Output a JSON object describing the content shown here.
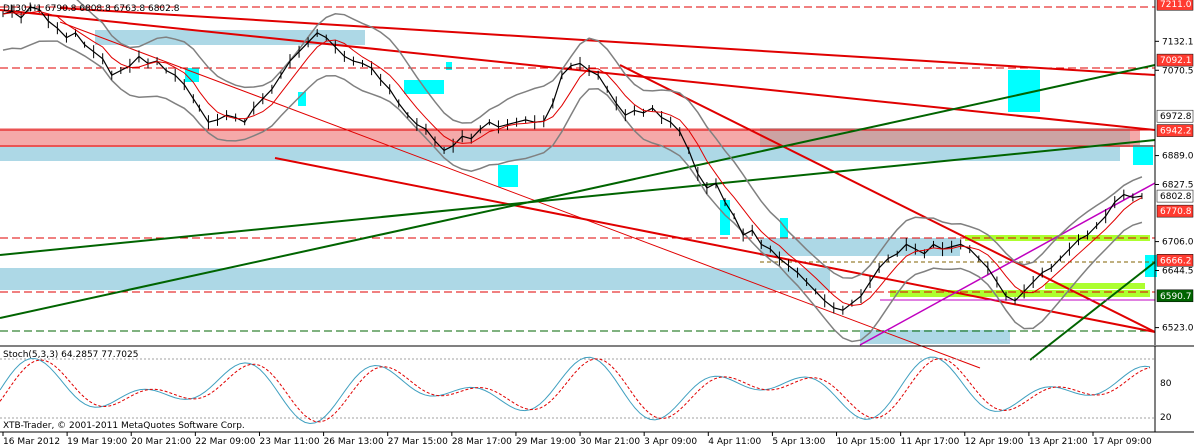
{
  "chart_data": {
    "type": "candlestick",
    "header": "DJI30,H1  6790.8 6808.8 6763.8 6802.8",
    "y_range": [
      6486,
      7220
    ],
    "price_ticks": [
      "7132.1",
      "7070.5",
      "6889.0",
      "6827.5",
      "6706.0",
      "6644.5",
      "6523.0"
    ],
    "price_labels": [
      {
        "text": "7211.0",
        "value": 7211.0,
        "bg": "#ff3b30",
        "fg": "#ffffff"
      },
      {
        "text": "7092.1",
        "value": 7092.1,
        "bg": "#ff3b30",
        "fg": "#ffffff"
      },
      {
        "text": "6972.8",
        "value": 6972.8,
        "bg": "#ffffff",
        "fg": "#000000"
      },
      {
        "text": "6942.2",
        "value": 6942.2,
        "bg": "#ff3b30",
        "fg": "#ffffff"
      },
      {
        "text": "6802.8",
        "value": 6802.8,
        "bg": "#ffffff",
        "fg": "#000000"
      },
      {
        "text": "6770.8",
        "value": 6770.8,
        "bg": "#ff3b30",
        "fg": "#ffffff"
      },
      {
        "text": "6666.2",
        "value": 6666.2,
        "bg": "#ff3b30",
        "fg": "#ffffff"
      },
      {
        "text": "6590.7",
        "value": 6590.7,
        "bg": "#006400",
        "fg": "#ffffff"
      }
    ],
    "time_labels": [
      "16 Mar 2012",
      "19 Mar 19:00",
      "20 Mar 21:00",
      "22 Mar 09:00",
      "23 Mar 11:00",
      "26 Mar 13:00",
      "27 Mar 15:00",
      "28 Mar 17:00",
      "29 Mar 19:00",
      "30 Mar 21:00",
      "3 Apr 09:00",
      "4 Apr 11:00",
      "5 Apr 13:00",
      "10 Apr 15:00",
      "11 Apr 17:00",
      "12 Apr 19:00",
      "13 Apr 21:00",
      "17 Apr 09:00"
    ],
    "price_path": [
      [
        0,
        7190
      ],
      [
        6,
        7196
      ],
      [
        12,
        7182
      ],
      [
        18,
        7205
      ],
      [
        24,
        7200
      ],
      [
        30,
        7175
      ],
      [
        36,
        7160
      ],
      [
        42,
        7140
      ],
      [
        48,
        7150
      ],
      [
        54,
        7125
      ],
      [
        60,
        7110
      ],
      [
        66,
        7095
      ],
      [
        72,
        7060
      ],
      [
        78,
        7070
      ],
      [
        84,
        7080
      ],
      [
        90,
        7100
      ],
      [
        96,
        7085
      ],
      [
        102,
        7090
      ],
      [
        108,
        7070
      ],
      [
        114,
        7060
      ],
      [
        120,
        7040
      ],
      [
        126,
        7010
      ],
      [
        130,
        6990
      ],
      [
        136,
        6960
      ],
      [
        142,
        6965
      ],
      [
        148,
        6975
      ],
      [
        154,
        6970
      ],
      [
        160,
        6960
      ],
      [
        166,
        6990
      ],
      [
        172,
        7010
      ],
      [
        178,
        7030
      ],
      [
        184,
        7060
      ],
      [
        190,
        7090
      ],
      [
        196,
        7110
      ],
      [
        202,
        7130
      ],
      [
        208,
        7150
      ],
      [
        214,
        7140
      ],
      [
        220,
        7120
      ],
      [
        226,
        7100
      ],
      [
        232,
        7090
      ],
      [
        238,
        7085
      ],
      [
        244,
        7075
      ],
      [
        250,
        7050
      ],
      [
        256,
        7030
      ],
      [
        262,
        7000
      ],
      [
        268,
        6975
      ],
      [
        274,
        6955
      ],
      [
        280,
        6945
      ],
      [
        286,
        6920
      ],
      [
        292,
        6900
      ],
      [
        298,
        6910
      ],
      [
        304,
        6930
      ],
      [
        310,
        6925
      ],
      [
        316,
        6945
      ],
      [
        322,
        6960
      ],
      [
        328,
        6950
      ],
      [
        334,
        6955
      ],
      [
        340,
        6960
      ],
      [
        346,
        6965
      ],
      [
        352,
        6960
      ],
      [
        358,
        6962
      ],
      [
        364,
        7000
      ],
      [
        370,
        7060
      ],
      [
        376,
        7080
      ],
      [
        382,
        7085
      ],
      [
        388,
        7070
      ],
      [
        394,
        7060
      ],
      [
        400,
        7030
      ],
      [
        406,
        7000
      ],
      [
        412,
        6975
      ],
      [
        418,
        6985
      ],
      [
        424,
        6980
      ],
      [
        430,
        6990
      ],
      [
        436,
        6970
      ],
      [
        442,
        6960
      ],
      [
        448,
        6940
      ],
      [
        454,
        6900
      ],
      [
        460,
        6850
      ],
      [
        466,
        6820
      ],
      [
        472,
        6830
      ],
      [
        478,
        6790
      ],
      [
        484,
        6760
      ],
      [
        490,
        6720
      ],
      [
        496,
        6730
      ],
      [
        502,
        6700
      ],
      [
        508,
        6690
      ],
      [
        514,
        6670
      ],
      [
        520,
        6655
      ],
      [
        526,
        6640
      ],
      [
        532,
        6620
      ],
      [
        538,
        6600
      ],
      [
        544,
        6580
      ],
      [
        550,
        6565
      ],
      [
        556,
        6560
      ],
      [
        562,
        6575
      ],
      [
        568,
        6590
      ],
      [
        574,
        6620
      ],
      [
        580,
        6650
      ],
      [
        586,
        6670
      ],
      [
        592,
        6680
      ],
      [
        598,
        6700
      ],
      [
        604,
        6690
      ],
      [
        610,
        6680
      ],
      [
        616,
        6700
      ],
      [
        622,
        6690
      ],
      [
        628,
        6695
      ],
      [
        634,
        6700
      ],
      [
        640,
        6690
      ],
      [
        646,
        6670
      ],
      [
        652,
        6650
      ],
      [
        658,
        6620
      ],
      [
        664,
        6590
      ],
      [
        670,
        6580
      ],
      [
        676,
        6600
      ],
      [
        682,
        6620
      ],
      [
        688,
        6640
      ],
      [
        694,
        6650
      ],
      [
        700,
        6670
      ],
      [
        706,
        6690
      ],
      [
        712,
        6710
      ],
      [
        718,
        6720
      ],
      [
        724,
        6740
      ],
      [
        730,
        6760
      ],
      [
        736,
        6790
      ],
      [
        742,
        6806
      ],
      [
        748,
        6800
      ],
      [
        754,
        6802.8
      ]
    ],
    "stochastic": {
      "label": "Stoch(5,3,3) 64.2857 77.7025",
      "levels": [
        "80",
        "20"
      ],
      "main_value": 64.2857,
      "signal_value": 77.7025
    }
  },
  "footer": {
    "copyright": "XTB-Trader, © 2001-2011 MetaQuotes Software Corp."
  },
  "colors": {
    "background": "#ffffff",
    "line_red": "#e00000",
    "line_green": "#006400",
    "box_blue": "#add8e6",
    "box_cyan": "#00ffff",
    "box_red": "#f08080",
    "box_lime": "#adff2f",
    "band_gray": "#808080",
    "magenta": "#c000c0"
  }
}
